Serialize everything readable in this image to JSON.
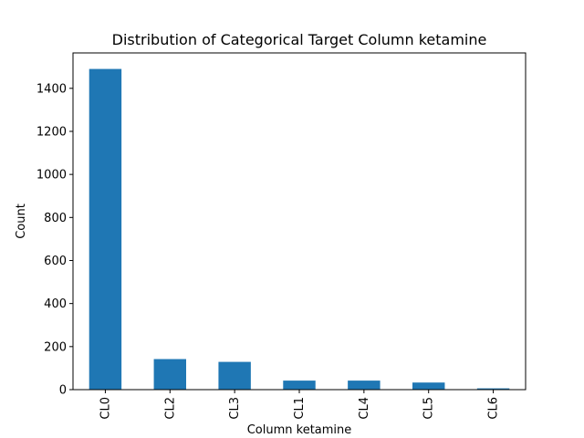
{
  "chart_data": {
    "type": "bar",
    "title": "Distribution of Categorical Target Column ketamine",
    "xlabel": "Column ketamine",
    "ylabel": "Count",
    "categories": [
      "CL0",
      "CL2",
      "CL3",
      "CL1",
      "CL4",
      "CL5",
      "CL6"
    ],
    "values": [
      1490,
      142,
      129,
      42,
      42,
      33,
      6
    ],
    "yticks": [
      0,
      200,
      400,
      600,
      800,
      1000,
      1200,
      1400
    ],
    "ylim": [
      0,
      1564.5
    ],
    "bar_color": "#1f77b4",
    "grid": false,
    "legend": "none"
  }
}
